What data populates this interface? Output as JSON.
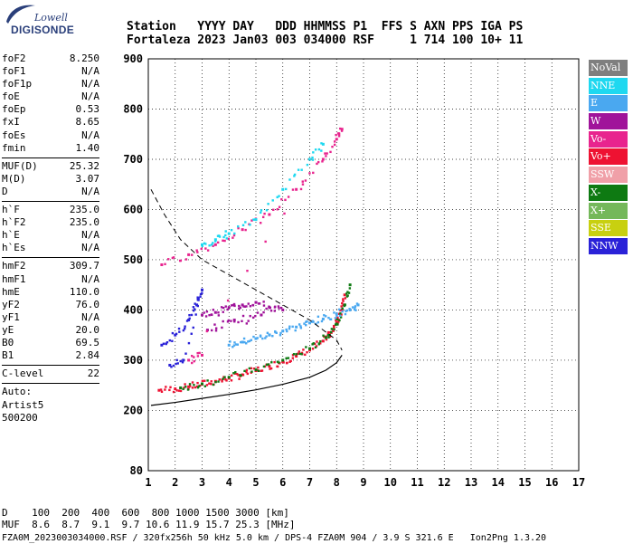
{
  "logo": {
    "line1": "Lowell",
    "line2": "DIGISONDE"
  },
  "header": {
    "line1": "Station   YYYY DAY   DDD HHMMSS P1  FFS S AXN PPS IGA PS",
    "line2": "Fortaleza 2023 Jan03 003 034000 RSF     1 714 100 10+ 11"
  },
  "params": [
    {
      "label": "foF2",
      "value": "8.250"
    },
    {
      "label": "foF1",
      "value": "N/A"
    },
    {
      "label": "foF1p",
      "value": "N/A"
    },
    {
      "label": "foE",
      "value": "N/A"
    },
    {
      "label": "foEp",
      "value": "0.53"
    },
    {
      "label": "fxI",
      "value": "8.65"
    },
    {
      "label": "foEs",
      "value": "N/A"
    },
    {
      "label": "fmin",
      "value": "1.40"
    },
    {
      "label": "MUF(D)",
      "value": "25.32"
    },
    {
      "label": "M(D)",
      "value": "3.07"
    },
    {
      "label": "D",
      "value": "N/A"
    },
    {
      "label": "h`F",
      "value": "235.0"
    },
    {
      "label": "h`F2",
      "value": "235.0"
    },
    {
      "label": "h`E",
      "value": "N/A"
    },
    {
      "label": "h`Es",
      "value": "N/A"
    },
    {
      "label": "hmF2",
      "value": "309.7"
    },
    {
      "label": "hmF1",
      "value": "N/A"
    },
    {
      "label": "hmE",
      "value": "110.0"
    },
    {
      "label": "yF2",
      "value": "76.0"
    },
    {
      "label": "yF1",
      "value": "N/A"
    },
    {
      "label": "yE",
      "value": "20.0"
    },
    {
      "label": "B0",
      "value": "69.5"
    },
    {
      "label": "B1",
      "value": "2.84"
    },
    {
      "label": "C-level",
      "value": "22"
    }
  ],
  "auto": {
    "line1": "Auto:",
    "line2": "Artist5",
    "line3": "500200"
  },
  "legend": [
    {
      "label": "NoVal",
      "color": "#7f7f7f"
    },
    {
      "label": "NNE",
      "color": "#1fd8f0"
    },
    {
      "label": "E",
      "color": "#4aa8f0"
    },
    {
      "label": "W",
      "color": "#a0139a"
    },
    {
      "label": "Vo-",
      "color": "#e8248e"
    },
    {
      "label": "Vo+",
      "color": "#ee1232"
    },
    {
      "label": "SSW",
      "color": "#f0a0a8"
    },
    {
      "label": "X-",
      "color": "#0e7a12"
    },
    {
      "label": "X+",
      "color": "#74b85a"
    },
    {
      "label": "SSE",
      "color": "#c8d010"
    },
    {
      "label": "NNW",
      "color": "#2a22d8"
    }
  ],
  "bottom": {
    "line1": "D    100  200  400  600  800 1000 1500 3000 [km]",
    "line2": "MUF  8.6  8.7  9.1  9.7 10.6 11.9 15.7 25.3 [MHz]",
    "line3": "FZA0M_2023003034000.RSF / 320fx256h 50 kHz 5.0 km / DPS-4 FZA0M 904 / 3.9 S 321.6 E   Ion2Png 1.3.20"
  },
  "chart_data": {
    "type": "scatter",
    "title": "",
    "xlabel": "",
    "ylabel": "",
    "xlim": [
      1,
      17
    ],
    "ylim": [
      80,
      900
    ],
    "x_ticks": [
      1,
      2,
      3,
      4,
      5,
      6,
      7,
      8,
      9,
      10,
      11,
      12,
      13,
      14,
      15,
      16,
      17
    ],
    "y_ticks": [
      80,
      200,
      300,
      400,
      500,
      600,
      700,
      800,
      900
    ],
    "grid": true,
    "series": [
      {
        "name": "Vo+",
        "color": "#ee1232",
        "points": [
          [
            1.4,
            240
          ],
          [
            2.0,
            243
          ],
          [
            2.5,
            247
          ],
          [
            3.0,
            252
          ],
          [
            3.5,
            258
          ],
          [
            4.0,
            264
          ],
          [
            4.5,
            271
          ],
          [
            5.0,
            279
          ],
          [
            5.5,
            288
          ],
          [
            6.0,
            297
          ],
          [
            6.5,
            308
          ],
          [
            7.0,
            320
          ],
          [
            7.5,
            338
          ],
          [
            7.8,
            355
          ],
          [
            8.0,
            375
          ],
          [
            8.2,
            400
          ],
          [
            8.3,
            430
          ]
        ]
      },
      {
        "name": "X-",
        "color": "#0e7a12",
        "points": [
          [
            2.2,
            245
          ],
          [
            3.0,
            253
          ],
          [
            4.0,
            266
          ],
          [
            5.0,
            281
          ],
          [
            6.0,
            300
          ],
          [
            7.0,
            323
          ],
          [
            7.6,
            345
          ],
          [
            8.0,
            372
          ],
          [
            8.3,
            410
          ],
          [
            8.5,
            450
          ]
        ]
      },
      {
        "name": "E",
        "color": "#4aa8f0",
        "points": [
          [
            4.0,
            330
          ],
          [
            4.5,
            336
          ],
          [
            5.0,
            343
          ],
          [
            5.5,
            350
          ],
          [
            6.0,
            358
          ],
          [
            6.5,
            366
          ],
          [
            7.0,
            374
          ],
          [
            7.5,
            382
          ],
          [
            8.0,
            392
          ],
          [
            8.5,
            400
          ],
          [
            8.8,
            410
          ]
        ]
      },
      {
        "name": "W",
        "color": "#a0139a",
        "points": [
          [
            3.0,
            390
          ],
          [
            3.5,
            395
          ],
          [
            4.0,
            405
          ],
          [
            4.5,
            410
          ],
          [
            5.0,
            415
          ],
          [
            5.5,
            405
          ],
          [
            6.0,
            400
          ],
          [
            3.2,
            360
          ],
          [
            4.2,
            380
          ],
          [
            5.2,
            390
          ]
        ]
      },
      {
        "name": "NNW",
        "color": "#2a22d8",
        "points": [
          [
            1.5,
            330
          ],
          [
            2.0,
            350
          ],
          [
            2.5,
            380
          ],
          [
            2.8,
            410
          ],
          [
            3.0,
            440
          ],
          [
            2.3,
            300
          ],
          [
            1.8,
            290
          ]
        ]
      },
      {
        "name": "Vo-",
        "color": "#e8248e",
        "points": [
          [
            1.5,
            490
          ],
          [
            2.5,
            510
          ],
          [
            3.5,
            530
          ],
          [
            4.5,
            560
          ],
          [
            5.5,
            590
          ],
          [
            6.5,
            640
          ],
          [
            7.5,
            700
          ],
          [
            8.0,
            740
          ],
          [
            8.2,
            760
          ],
          [
            2.5,
            300
          ],
          [
            3.0,
            310
          ]
        ]
      },
      {
        "name": "NNE",
        "color": "#1fd8f0",
        "points": [
          [
            3.0,
            530
          ],
          [
            3.5,
            540
          ],
          [
            4.0,
            552
          ],
          [
            5.0,
            580
          ],
          [
            6.0,
            640
          ],
          [
            7.0,
            700
          ],
          [
            7.5,
            730
          ]
        ]
      }
    ],
    "annotations": []
  }
}
